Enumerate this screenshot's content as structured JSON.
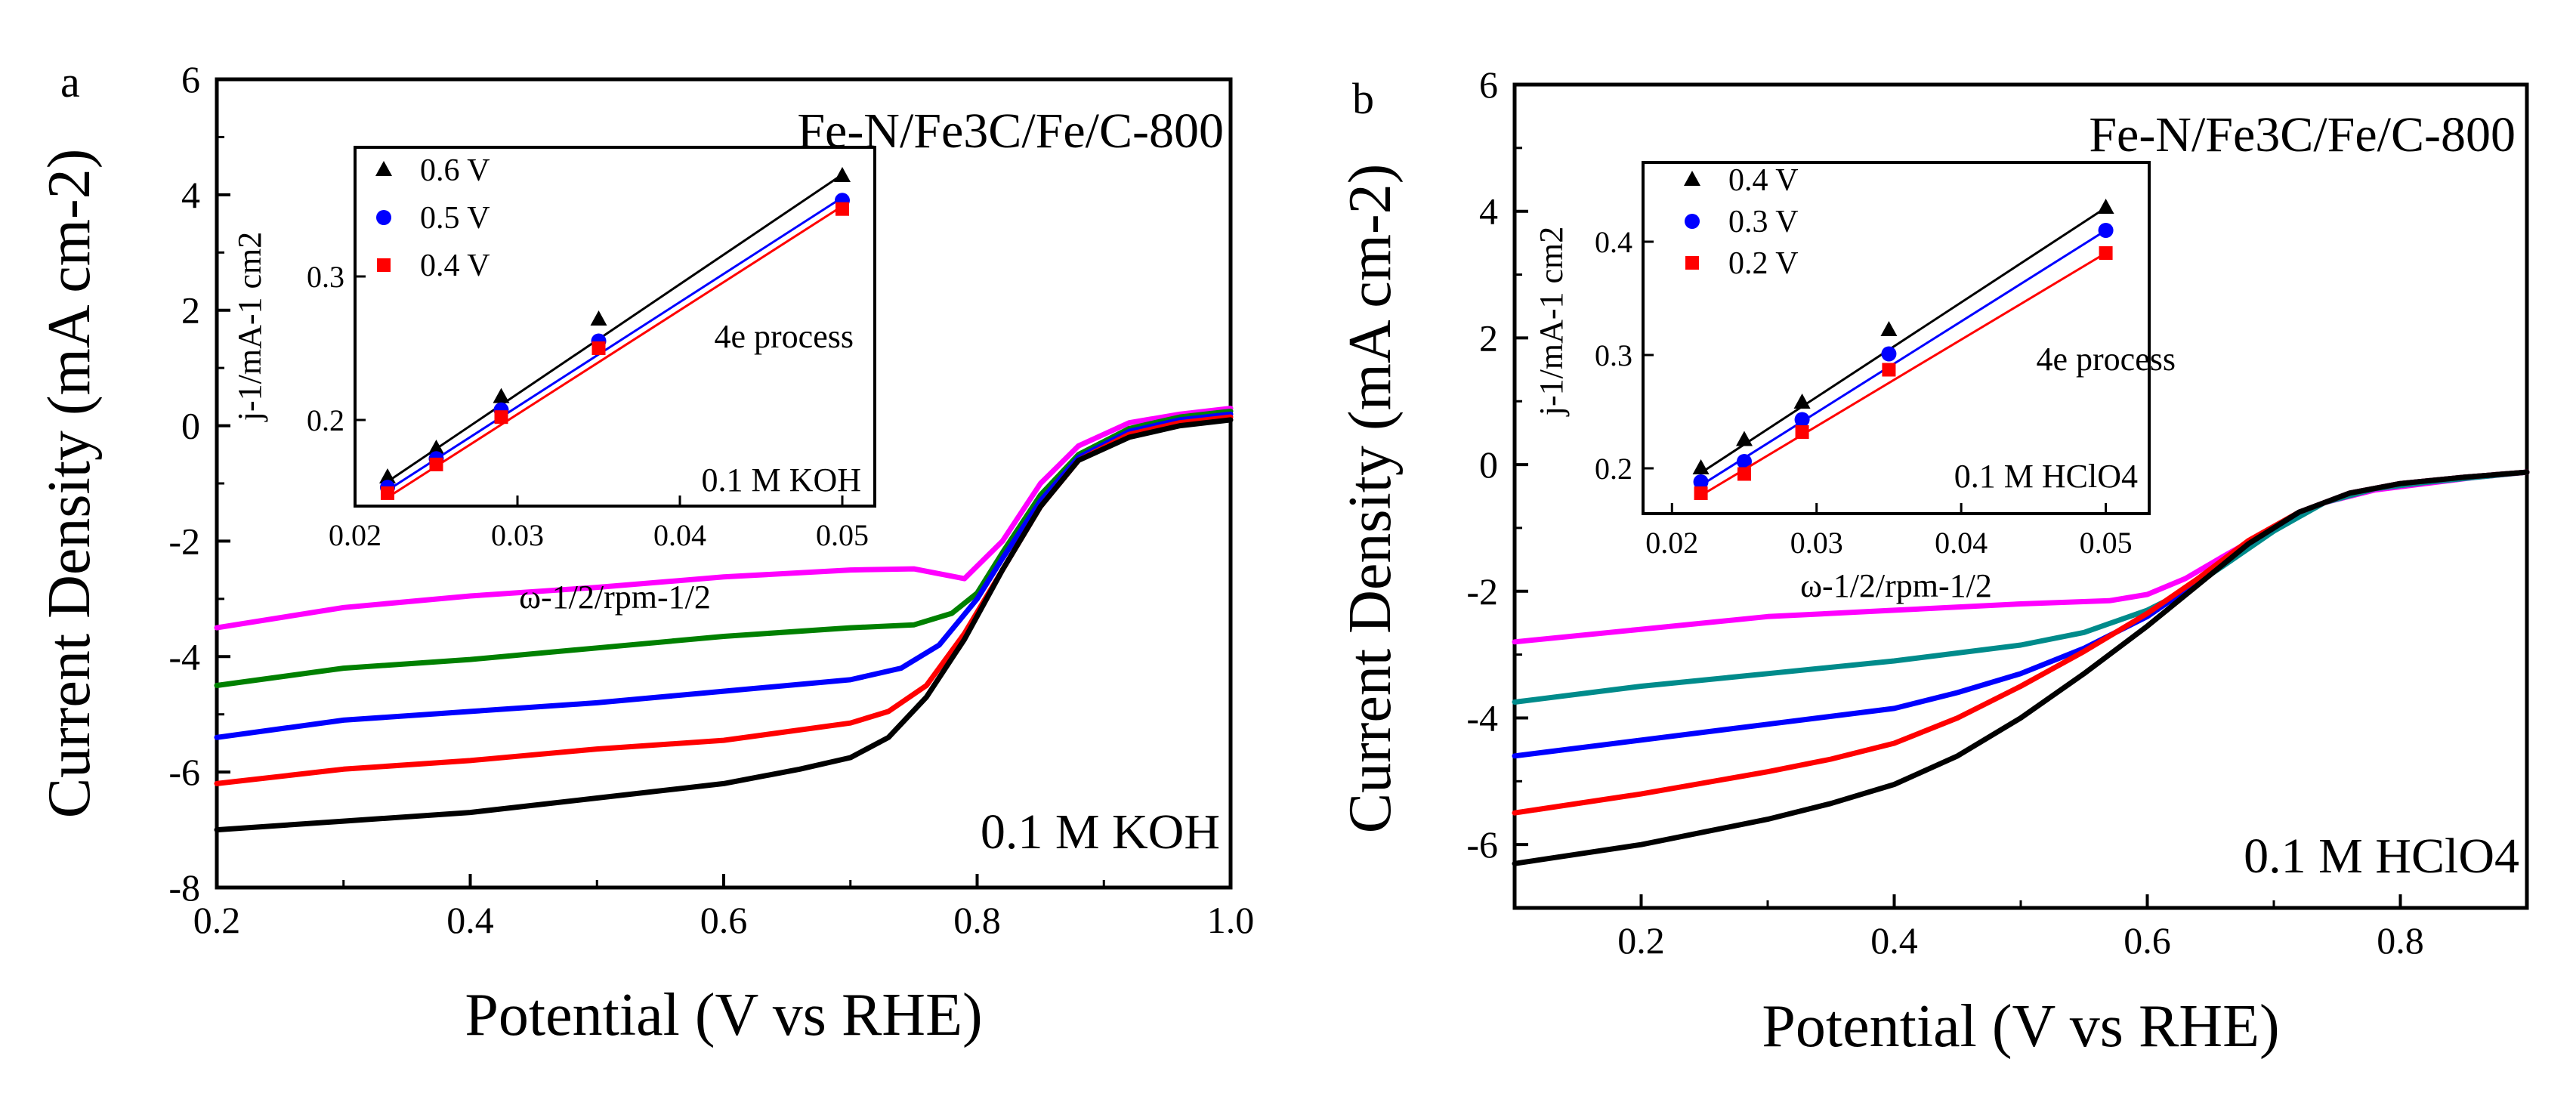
{
  "chart_data": [
    {
      "panel": "a",
      "type": "line",
      "title": "",
      "sample": "Fe-N/Fe3C/Fe/C-800",
      "electrolyte": "0.1 M KOH",
      "xlabel": "Potential (V vs RHE)",
      "ylabel": "Current Density (mA cm-2)",
      "xlim": [
        0.2,
        1.0
      ],
      "ylim": [
        -8,
        6
      ],
      "xticks": [
        "0.2",
        "0.4",
        "0.6",
        "0.8",
        "1.0"
      ],
      "yticks": [
        "-8",
        "-6",
        "-4",
        "-2",
        "0",
        "2",
        "4",
        "6"
      ],
      "series": [
        {
          "color": "#ff00ff",
          "x": [
            0.2,
            0.3,
            0.4,
            0.5,
            0.6,
            0.7,
            0.75,
            0.79,
            0.82,
            0.85,
            0.88,
            0.92,
            0.96,
            1.0
          ],
          "y": [
            -3.5,
            -3.15,
            -2.95,
            -2.8,
            -2.62,
            -2.5,
            -2.48,
            -2.65,
            -2.0,
            -1.0,
            -0.35,
            0.05,
            0.2,
            0.3
          ]
        },
        {
          "color": "#008000",
          "x": [
            0.2,
            0.3,
            0.4,
            0.5,
            0.6,
            0.7,
            0.75,
            0.78,
            0.8,
            0.82,
            0.85,
            0.88,
            0.92,
            0.96,
            1.0
          ],
          "y": [
            -4.5,
            -4.2,
            -4.05,
            -3.85,
            -3.65,
            -3.5,
            -3.45,
            -3.25,
            -2.9,
            -2.2,
            -1.2,
            -0.5,
            -0.05,
            0.15,
            0.25
          ]
        },
        {
          "color": "#0000ff",
          "x": [
            0.2,
            0.3,
            0.4,
            0.5,
            0.6,
            0.7,
            0.74,
            0.77,
            0.8,
            0.82,
            0.85,
            0.88,
            0.92,
            0.96,
            1.0
          ],
          "y": [
            -5.4,
            -5.1,
            -4.95,
            -4.8,
            -4.6,
            -4.4,
            -4.2,
            -3.8,
            -3.0,
            -2.3,
            -1.3,
            -0.55,
            -0.1,
            0.1,
            0.2
          ]
        },
        {
          "color": "#ff0000",
          "x": [
            0.2,
            0.3,
            0.4,
            0.5,
            0.6,
            0.7,
            0.73,
            0.76,
            0.79,
            0.82,
            0.85,
            0.88,
            0.92,
            0.96,
            1.0
          ],
          "y": [
            -6.2,
            -5.95,
            -5.8,
            -5.6,
            -5.45,
            -5.15,
            -4.95,
            -4.5,
            -3.6,
            -2.5,
            -1.4,
            -0.6,
            -0.15,
            0.05,
            0.15
          ]
        },
        {
          "color": "#000000",
          "x": [
            0.2,
            0.3,
            0.4,
            0.5,
            0.6,
            0.66,
            0.7,
            0.73,
            0.76,
            0.79,
            0.82,
            0.85,
            0.88,
            0.92,
            0.96,
            1.0
          ],
          "y": [
            -7.0,
            -6.85,
            -6.7,
            -6.45,
            -6.2,
            -5.95,
            -5.75,
            -5.4,
            -4.7,
            -3.7,
            -2.5,
            -1.4,
            -0.6,
            -0.2,
            0.0,
            0.1
          ]
        }
      ],
      "inset": {
        "type": "scatter",
        "xlabel": "ω-1/2/rpm-1/2",
        "ylabel": "j-1/mA-1 cm2",
        "xlim": [
          0.02,
          0.052
        ],
        "ylim": [
          0.14,
          0.39
        ],
        "xticks": [
          "0.02",
          "0.03",
          "0.04",
          "0.05"
        ],
        "yticks": [
          "0.2",
          "0.3"
        ],
        "note": "4e process",
        "electrolyte": "0.1 M KOH",
        "x": [
          0.022,
          0.025,
          0.029,
          0.035,
          0.05
        ],
        "series": [
          {
            "name": "0.6 V",
            "color": "#000000",
            "marker": "triangle",
            "values": [
              0.16,
              0.18,
              0.216,
              0.27,
              0.37
            ],
            "fit": [
              0.157,
              0.371
            ]
          },
          {
            "name": "0.5 V",
            "color": "#0000ff",
            "marker": "circle",
            "values": [
              0.153,
              0.173,
              0.207,
              0.255,
              0.353
            ],
            "fit": [
              0.151,
              0.355
            ]
          },
          {
            "name": "0.4 V",
            "color": "#ff0000",
            "marker": "square",
            "values": [
              0.149,
              0.169,
              0.202,
              0.25,
              0.347
            ],
            "fit": [
              0.146,
              0.349
            ]
          }
        ]
      }
    },
    {
      "panel": "b",
      "type": "line",
      "title": "",
      "sample": "Fe-N/Fe3C/Fe/C-800",
      "electrolyte": "0.1 M HClO4",
      "xlabel": "Potential (V vs RHE)",
      "ylabel": "Current Density (mA cm-2)",
      "xlim": [
        0.1,
        0.9
      ],
      "ylim": [
        -7,
        6
      ],
      "xticks": [
        "0.2",
        "0.4",
        "0.6",
        "0.8"
      ],
      "yticks": [
        "-6",
        "-4",
        "-2",
        "0",
        "2",
        "4",
        "6"
      ],
      "series": [
        {
          "color": "#ff00ff",
          "x": [
            0.1,
            0.2,
            0.3,
            0.4,
            0.5,
            0.57,
            0.6,
            0.63,
            0.66,
            0.7,
            0.74,
            0.78,
            0.82,
            0.86,
            0.9
          ],
          "y": [
            -2.8,
            -2.6,
            -2.4,
            -2.3,
            -2.2,
            -2.15,
            -2.05,
            -1.8,
            -1.45,
            -1.0,
            -0.6,
            -0.4,
            -0.3,
            -0.2,
            -0.12
          ]
        },
        {
          "color": "#008b8b",
          "x": [
            0.1,
            0.2,
            0.3,
            0.4,
            0.5,
            0.55,
            0.6,
            0.63,
            0.66,
            0.7,
            0.74,
            0.78,
            0.82,
            0.86,
            0.9
          ],
          "y": [
            -3.75,
            -3.5,
            -3.3,
            -3.1,
            -2.85,
            -2.65,
            -2.3,
            -2.0,
            -1.6,
            -1.05,
            -0.6,
            -0.38,
            -0.28,
            -0.2,
            -0.12
          ]
        },
        {
          "color": "#0000ff",
          "x": [
            0.1,
            0.2,
            0.3,
            0.4,
            0.45,
            0.5,
            0.55,
            0.6,
            0.64,
            0.68,
            0.72,
            0.76,
            0.8,
            0.85,
            0.9
          ],
          "y": [
            -4.6,
            -4.35,
            -4.1,
            -3.85,
            -3.6,
            -3.3,
            -2.9,
            -2.4,
            -1.85,
            -1.25,
            -0.75,
            -0.45,
            -0.3,
            -0.2,
            -0.12
          ]
        },
        {
          "color": "#ff0000",
          "x": [
            0.1,
            0.2,
            0.3,
            0.35,
            0.4,
            0.45,
            0.5,
            0.55,
            0.6,
            0.64,
            0.68,
            0.72,
            0.76,
            0.8,
            0.85,
            0.9
          ],
          "y": [
            -5.5,
            -5.2,
            -4.85,
            -4.65,
            -4.4,
            -4.0,
            -3.5,
            -2.95,
            -2.35,
            -1.8,
            -1.2,
            -0.75,
            -0.45,
            -0.3,
            -0.2,
            -0.12
          ]
        },
        {
          "color": "#000000",
          "x": [
            0.1,
            0.2,
            0.3,
            0.35,
            0.4,
            0.45,
            0.5,
            0.55,
            0.6,
            0.64,
            0.68,
            0.72,
            0.76,
            0.8,
            0.85,
            0.9
          ],
          "y": [
            -6.3,
            -6.0,
            -5.6,
            -5.35,
            -5.05,
            -4.6,
            -4.0,
            -3.3,
            -2.55,
            -1.9,
            -1.25,
            -0.75,
            -0.45,
            -0.3,
            -0.2,
            -0.12
          ]
        }
      ],
      "inset": {
        "type": "scatter",
        "xlabel": "ω-1/2/rpm-1/2",
        "ylabel": "j-1/mA-1 cm2",
        "xlim": [
          0.018,
          0.053
        ],
        "ylim": [
          0.16,
          0.47
        ],
        "xticks": [
          "0.02",
          "0.03",
          "0.04",
          "0.05"
        ],
        "yticks": [
          "0.2",
          "0.3",
          "0.4"
        ],
        "note": "4e process",
        "electrolyte": "0.1 M HClO4",
        "x": [
          0.022,
          0.025,
          0.029,
          0.035,
          0.05
        ],
        "series": [
          {
            "name": "0.4 V",
            "color": "#000000",
            "marker": "triangle",
            "values": [
              0.2,
              0.225,
              0.258,
              0.322,
              0.43
            ],
            "fit": [
              0.196,
              0.43
            ]
          },
          {
            "name": "0.3 V",
            "color": "#0000ff",
            "marker": "circle",
            "values": [
              0.188,
              0.206,
              0.243,
              0.301,
              0.41
            ],
            "fit": [
              0.185,
              0.41
            ]
          },
          {
            "name": "0.2 V",
            "color": "#ff0000",
            "marker": "square",
            "values": [
              0.178,
              0.195,
              0.232,
              0.287,
              0.39
            ],
            "fit": [
              0.176,
              0.39
            ]
          }
        ]
      }
    }
  ]
}
